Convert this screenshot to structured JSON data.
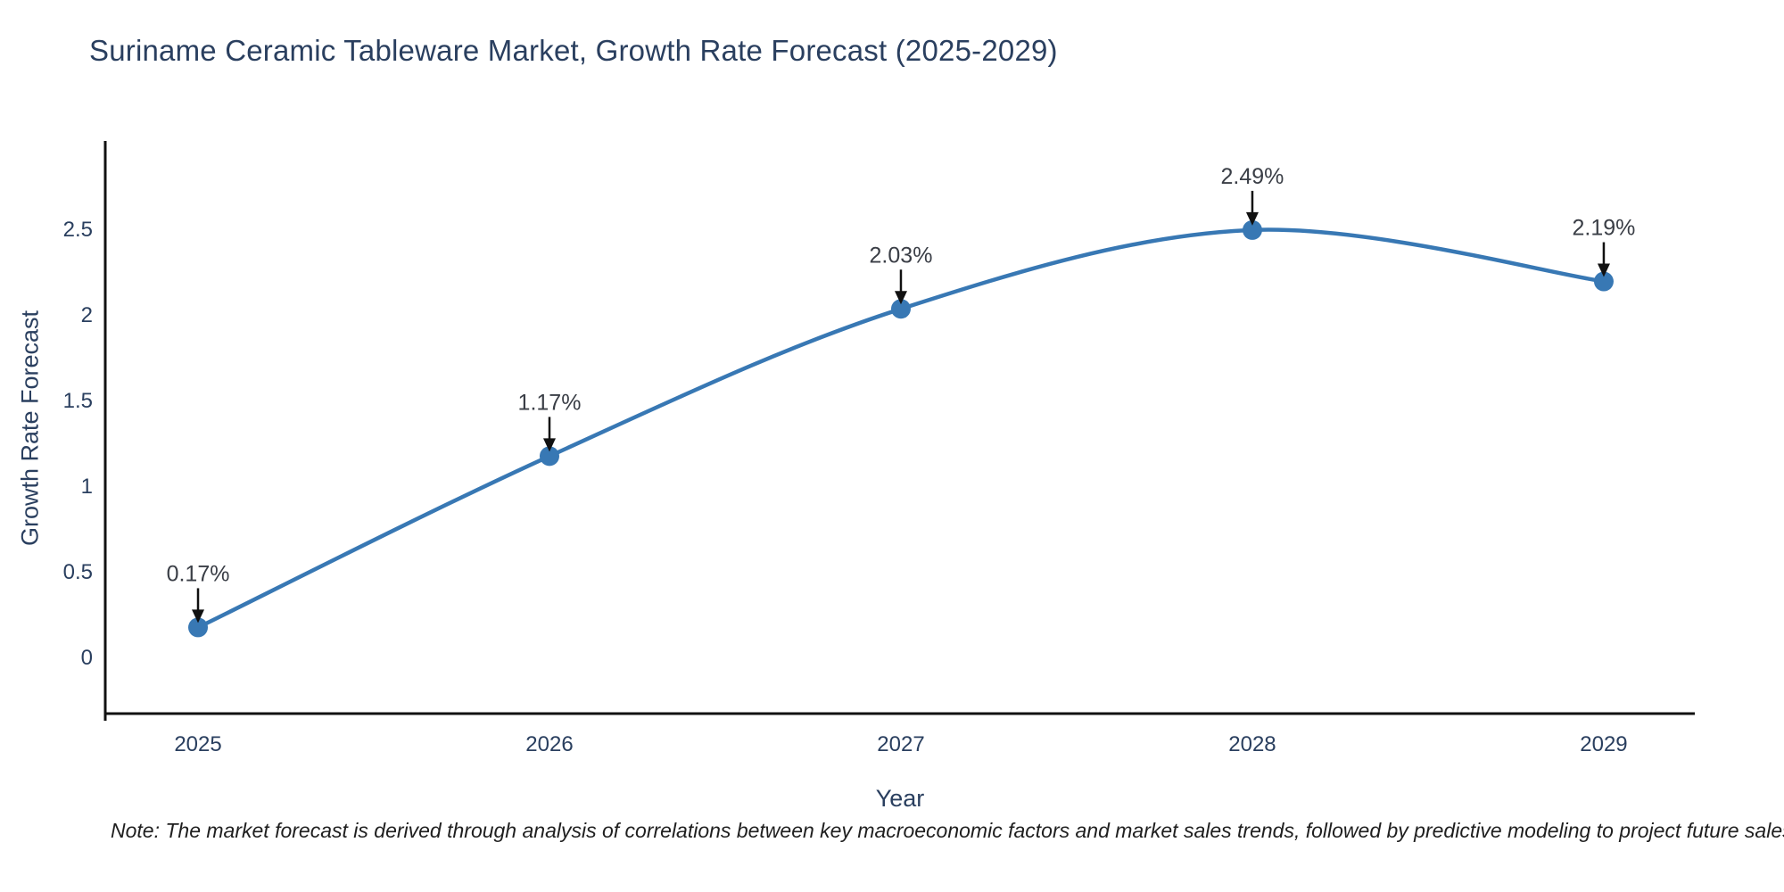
{
  "title": {
    "text": "Suriname Ceramic Tableware Market, Growth Rate Forecast (2025-2029)",
    "color": "#2a3f5f"
  },
  "chart_data": {
    "type": "line",
    "title": "Suriname Ceramic Tableware Market, Growth Rate Forecast (2025-2029)",
    "x": [
      2025,
      2026,
      2027,
      2028,
      2029
    ],
    "series": [
      {
        "name": "Growth Rate Forecast",
        "values": [
          0.17,
          1.17,
          2.03,
          2.49,
          2.19
        ]
      }
    ],
    "point_labels": [
      "0.17%",
      "1.17%",
      "2.03%",
      "2.49%",
      "2.19%"
    ],
    "xlabel": "Year",
    "ylabel": "Growth Rate Forecast",
    "xtick_labels": [
      "2025",
      "2026",
      "2027",
      "2028",
      "2029"
    ],
    "yticks": [
      0,
      0.5,
      1,
      1.5,
      2,
      2.5
    ],
    "ytick_labels": [
      "0",
      "0.5",
      "1",
      "1.5",
      "2",
      "2.5"
    ],
    "xlim": [
      2024.736,
      2029.259
    ],
    "ylim": [
      -0.333,
      3.0
    ],
    "grid": false,
    "legend": "none",
    "curve": "spline",
    "line_color": "#3878b4",
    "marker_color": "#3878b4",
    "axis_color": "#111111",
    "tick_color": "#2a3f5f",
    "annotation_text_color": "#3a3e46",
    "annotation_arrow_color": "#111111"
  },
  "note": {
    "text": "Note: The market forecast is derived through analysis of correlations between key macroeconomic factors and market sales trends, followed by predictive modeling to project future sales"
  }
}
